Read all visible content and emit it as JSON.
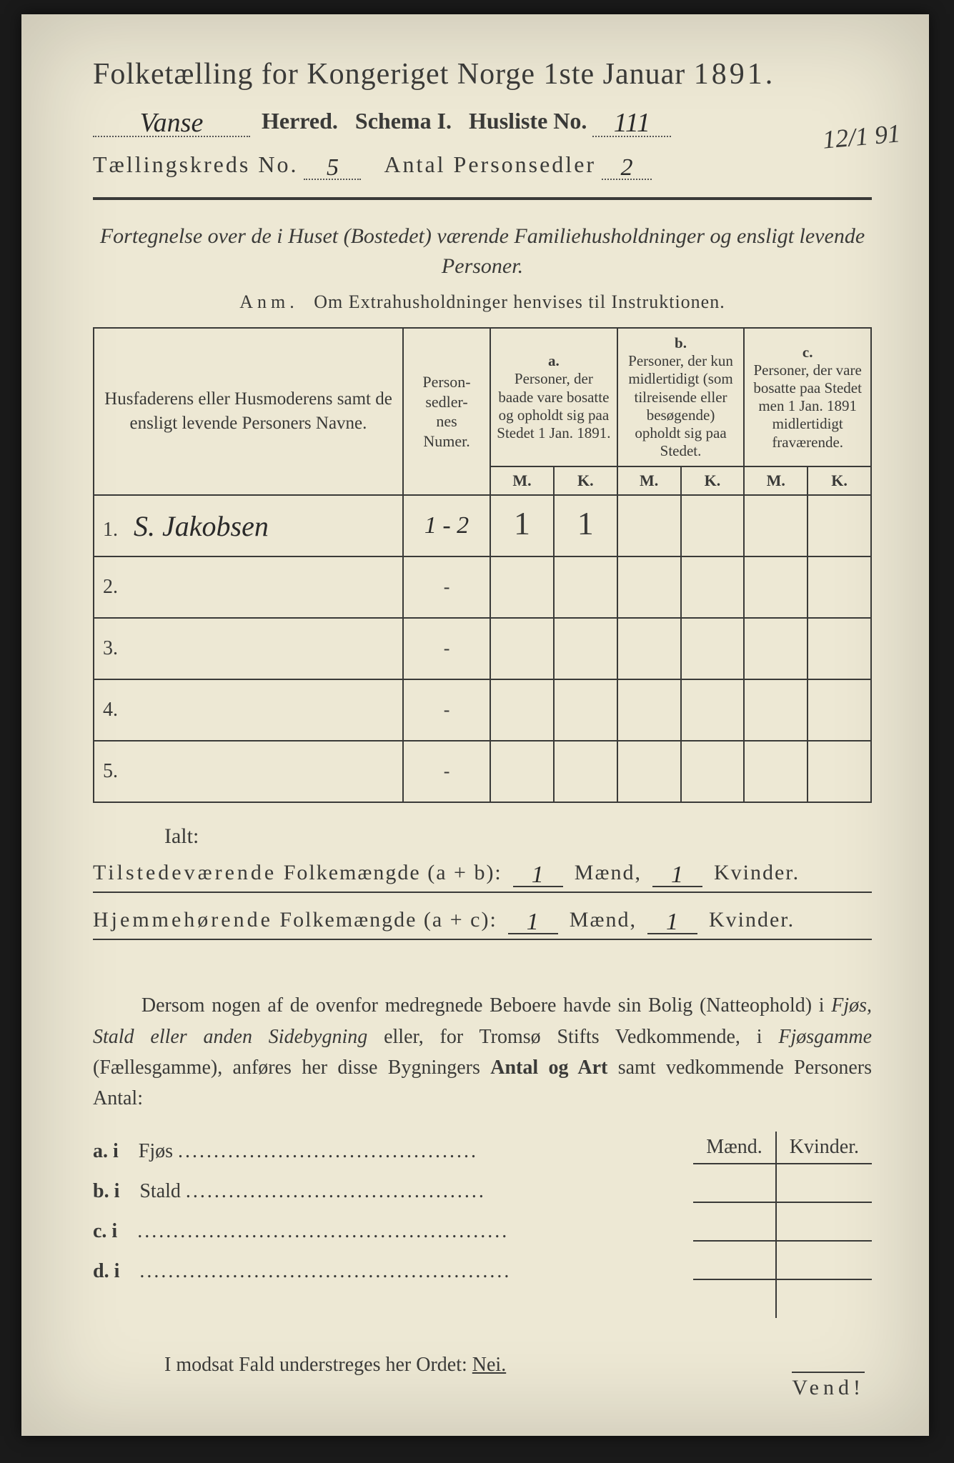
{
  "header": {
    "title_prefix": "Folketælling for Kongeriget Norge 1ste Januar",
    "year": "1891.",
    "herred_value": "Vanse",
    "herred_label": "Herred.",
    "schema_label": "Schema I.",
    "husliste_label": "Husliste No.",
    "husliste_value": "111",
    "side_date": "12/1 91",
    "kreds_label": "Tællingskreds No.",
    "kreds_value": "5",
    "personsedler_label": "Antal Personsedler",
    "personsedler_value": "2"
  },
  "subtitle": {
    "line": "Fortegnelse over de i Huset (Bostedet) værende Familiehusholdninger og ensligt levende Personer.",
    "anm_lead": "Anm.",
    "anm_text": "Om Extrahusholdninger henvises til Instruktionen."
  },
  "table": {
    "col_names": "Husfaderens eller Husmoderens samt de ensligt levende Personers Navne.",
    "col_numer": "Person-\nsedler-\nnes\nNumer.",
    "col_a_head": "a.",
    "col_a_text": "Personer, der baade vare bosatte og opholdt sig paa Stedet 1 Jan. 1891.",
    "col_b_head": "b.",
    "col_b_text": "Personer, der kun midlertidigt (som tilreisende eller besøgende) opholdt sig paa Stedet.",
    "col_c_head": "c.",
    "col_c_text": "Personer, der vare bosatte paa Stedet men 1 Jan. 1891 midlertidigt fraværende.",
    "m": "M.",
    "k": "K.",
    "rows": [
      {
        "n": "1.",
        "name": "S. Jakobsen",
        "numer": "1 - 2",
        "a_m": "1",
        "a_k": "1",
        "b_m": "",
        "b_k": "",
        "c_m": "",
        "c_k": ""
      },
      {
        "n": "2.",
        "name": "",
        "numer": "-",
        "a_m": "",
        "a_k": "",
        "b_m": "",
        "b_k": "",
        "c_m": "",
        "c_k": ""
      },
      {
        "n": "3.",
        "name": "",
        "numer": "-",
        "a_m": "",
        "a_k": "",
        "b_m": "",
        "b_k": "",
        "c_m": "",
        "c_k": ""
      },
      {
        "n": "4.",
        "name": "",
        "numer": "-",
        "a_m": "",
        "a_k": "",
        "b_m": "",
        "b_k": "",
        "c_m": "",
        "c_k": ""
      },
      {
        "n": "5.",
        "name": "",
        "numer": "-",
        "a_m": "",
        "a_k": "",
        "b_m": "",
        "b_k": "",
        "c_m": "",
        "c_k": ""
      }
    ]
  },
  "totals": {
    "ialt": "Ialt:",
    "line1_lead": "Tilstedeværende",
    "line1_rest": "Folkemængde (a + b):",
    "line2_lead": "Hjemmehørende",
    "line2_rest": "Folkemængde (a + c):",
    "maend": "Mænd,",
    "kvinder": "Kvinder.",
    "v1_m": "1",
    "v1_k": "1",
    "v2_m": "1",
    "v2_k": "1"
  },
  "para": {
    "text1": "Dersom nogen af de ovenfor medregnede Beboere havde sin Bolig (Natteophold) i ",
    "ital1": "Fjøs, Stald eller anden Sidebygning",
    "text2": " eller, for Tromsø Stifts Vedkommende, i ",
    "ital2": "Fjøsgamme",
    "text3": " (Fællesgamme), anføres her disse Bygningers ",
    "bold1": "Antal og Art",
    "text4": " samt vedkommende Personers Antal:"
  },
  "sidetable": {
    "maend": "Mænd.",
    "kvinder": "Kvinder.",
    "rows": [
      {
        "label": "a.  i",
        "name": "Fjøs"
      },
      {
        "label": "b.  i",
        "name": "Stald"
      },
      {
        "label": "c.  i",
        "name": ""
      },
      {
        "label": "d.  i",
        "name": ""
      }
    ]
  },
  "nei": {
    "text": "I modsat Fald understreges her Ordet: ",
    "word": "Nei."
  },
  "vend": "Vend!"
}
